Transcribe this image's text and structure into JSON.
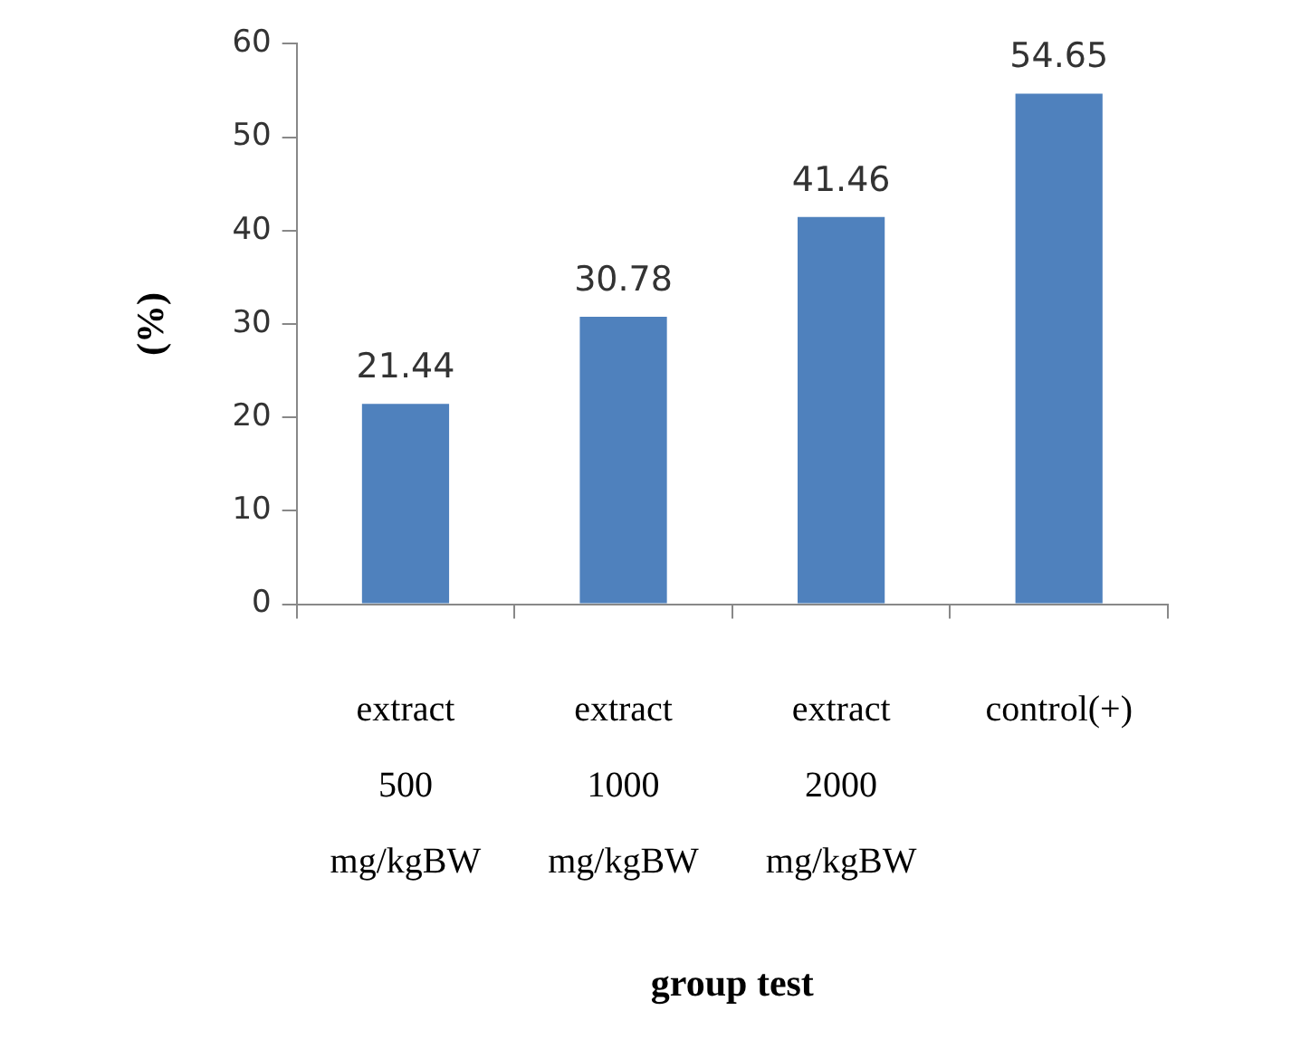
{
  "chart_data": {
    "type": "bar",
    "categories": [
      "extract 500 mg/kgBW",
      "extract 1000 mg/kgBW",
      "extract 2000 mg/kgBW",
      "control(+)"
    ],
    "values": [
      21.44,
      30.78,
      41.46,
      54.65
    ],
    "color": "#4f81bd",
    "ylim": [
      0,
      60
    ],
    "yticks": [
      0,
      10,
      20,
      30,
      40,
      50,
      60
    ],
    "grid": false,
    "data_labels": true,
    "xlabel": "group test",
    "ylabel": "(%)"
  }
}
